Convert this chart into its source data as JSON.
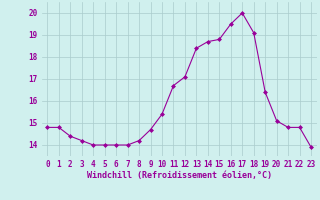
{
  "x": [
    0,
    1,
    2,
    3,
    4,
    5,
    6,
    7,
    8,
    9,
    10,
    11,
    12,
    13,
    14,
    15,
    16,
    17,
    18,
    19,
    20,
    21,
    22,
    23
  ],
  "y": [
    14.8,
    14.8,
    14.4,
    14.2,
    14.0,
    14.0,
    14.0,
    14.0,
    14.2,
    14.7,
    15.4,
    16.7,
    17.1,
    18.4,
    18.7,
    18.8,
    19.5,
    20.0,
    19.1,
    16.4,
    15.1,
    14.8,
    14.8,
    13.9
  ],
  "line_color": "#990099",
  "marker": "D",
  "marker_size": 2.0,
  "bg_color": "#d0f0ee",
  "grid_color": "#aacccc",
  "xlabel": "Windchill (Refroidissement éolien,°C)",
  "xlabel_color": "#990099",
  "tick_color": "#990099",
  "ylim": [
    13.5,
    20.5
  ],
  "xlim": [
    -0.5,
    23.5
  ],
  "yticks": [
    14,
    15,
    16,
    17,
    18,
    19,
    20
  ],
  "xticks": [
    0,
    1,
    2,
    3,
    4,
    5,
    6,
    7,
    8,
    9,
    10,
    11,
    12,
    13,
    14,
    15,
    16,
    17,
    18,
    19,
    20,
    21,
    22,
    23
  ],
  "tick_fontsize": 5.5,
  "xlabel_fontsize": 6.0,
  "ylabel_fontsize": 6.0
}
